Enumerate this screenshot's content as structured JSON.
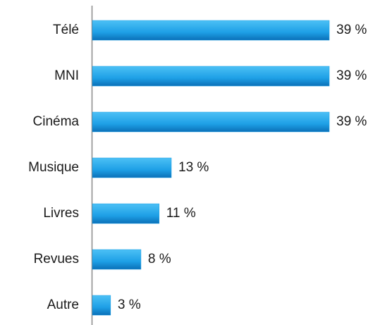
{
  "chart_data": {
    "type": "bar",
    "orientation": "horizontal",
    "categories": [
      "Télé",
      "MNI",
      "Cinéma",
      "Musique",
      "Livres",
      "Revues",
      "Autre"
    ],
    "values": [
      39,
      39,
      39,
      13,
      11,
      8,
      3
    ],
    "value_labels": [
      "39 %",
      "39 %",
      "39 %",
      "13 %",
      "11 %",
      "8 %",
      "3 %"
    ],
    "color": "#1ea0e6"
  }
}
